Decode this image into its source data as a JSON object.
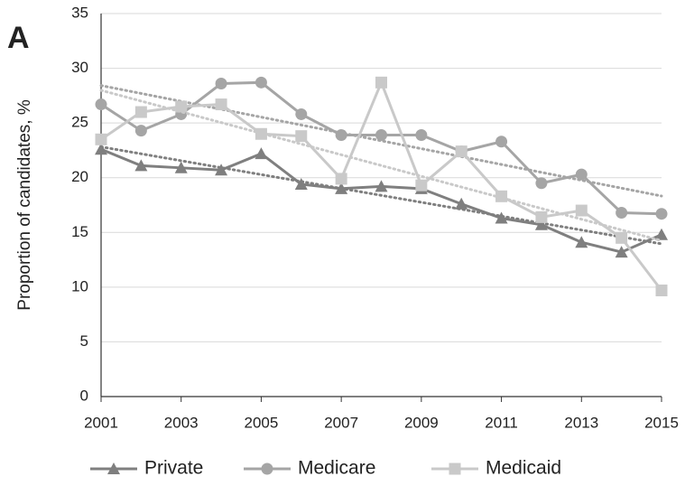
{
  "chart_data": {
    "type": "line",
    "panel_label": "A",
    "ylabel": "Proportion of candidates, %",
    "x": [
      2001,
      2002,
      2003,
      2004,
      2005,
      2006,
      2007,
      2008,
      2009,
      2010,
      2011,
      2012,
      2013,
      2014,
      2015
    ],
    "xlim": [
      2001,
      2015
    ],
    "xticks": [
      2001,
      2003,
      2005,
      2007,
      2009,
      2011,
      2013,
      2015
    ],
    "ylim": [
      0,
      35
    ],
    "yticks": [
      0,
      5,
      10,
      15,
      20,
      25,
      30,
      35
    ],
    "grid": true,
    "legend": "bottom",
    "trendlines": true,
    "series": [
      {
        "name": "Private",
        "color": "#7f7f7f",
        "marker": "triangle",
        "values": [
          22.6,
          21.1,
          20.9,
          20.7,
          22.2,
          19.4,
          19.0,
          19.2,
          19.0,
          17.6,
          16.3,
          15.7,
          14.1,
          13.2,
          14.8
        ]
      },
      {
        "name": "Medicare",
        "color": "#a5a5a5",
        "marker": "circle",
        "values": [
          26.7,
          24.3,
          25.8,
          28.6,
          28.7,
          25.8,
          23.9,
          23.9,
          23.9,
          22.4,
          23.3,
          19.5,
          20.3,
          16.8,
          16.7
        ]
      },
      {
        "name": "Medicaid",
        "color": "#c9c9c9",
        "marker": "square",
        "values": [
          23.5,
          26.0,
          26.5,
          26.7,
          24.0,
          23.8,
          19.9,
          28.7,
          19.3,
          22.4,
          18.3,
          16.4,
          17.0,
          14.5,
          9.7
        ]
      }
    ]
  }
}
